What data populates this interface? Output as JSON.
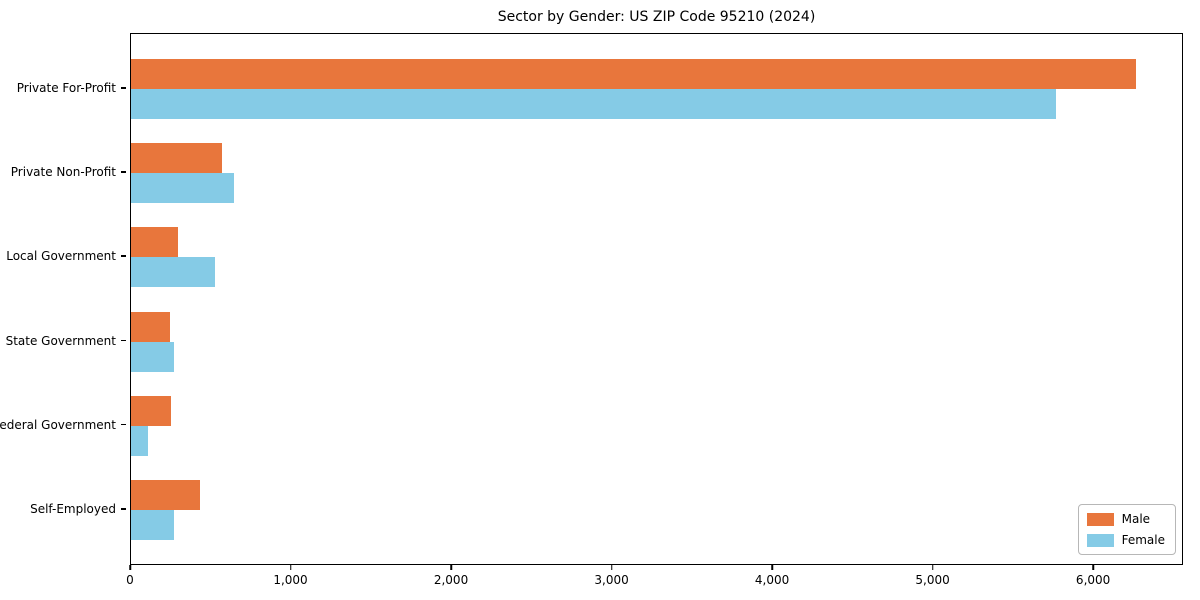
{
  "chart_data": {
    "type": "bar",
    "orientation": "horizontal",
    "title": "Sector by Gender: US ZIP Code 95210 (2024)",
    "xlabel": "",
    "ylabel": "",
    "categories": [
      "Private For-Profit",
      "Private Non-Profit",
      "Local Government",
      "State Government",
      "Federal Government",
      "Self-Employed"
    ],
    "series": [
      {
        "name": "Male",
        "color": "#e8763c",
        "values": [
          6260,
          565,
          295,
          240,
          250,
          430
        ]
      },
      {
        "name": "Female",
        "color": "#85cbe6",
        "values": [
          5760,
          640,
          525,
          270,
          105,
          265
        ]
      }
    ],
    "xlim": [
      0,
      6560
    ],
    "x_ticks": [
      0,
      1000,
      2000,
      3000,
      4000,
      5000,
      6000
    ],
    "x_tick_labels": [
      "0",
      "1,000",
      "2,000",
      "3,000",
      "4,000",
      "5,000",
      "6,000"
    ],
    "legend_position": "lower right",
    "grid": false,
    "frame_color": "#000000",
    "background_color": "#ffffff"
  }
}
